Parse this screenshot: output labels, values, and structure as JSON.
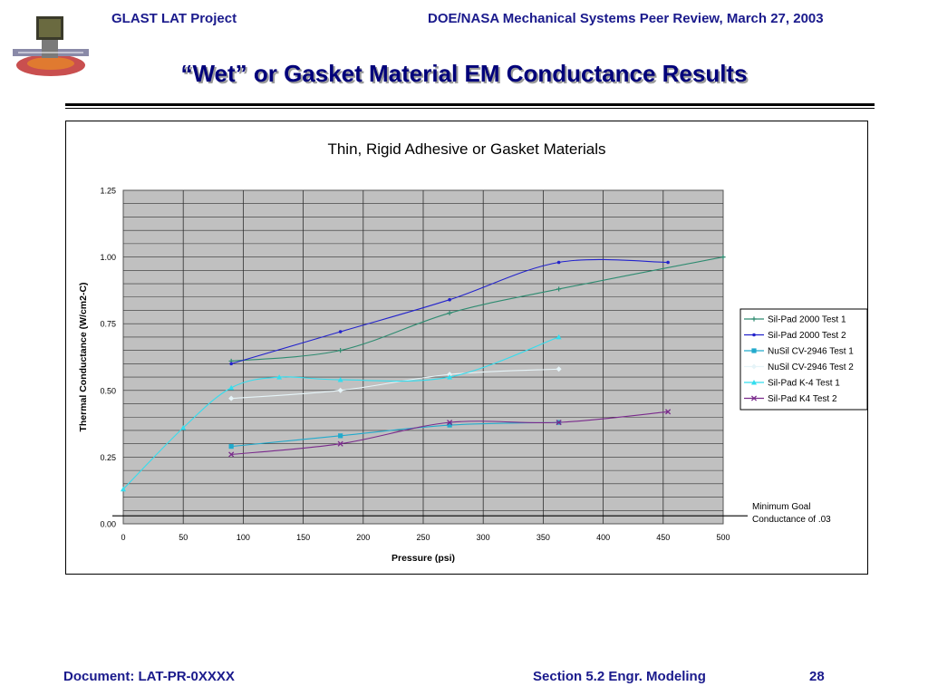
{
  "header": {
    "left": "GLAST LAT Project",
    "right": "DOE/NASA Mechanical Systems Peer Review, March 27, 2003"
  },
  "slide_title": "“Wet” or Gasket Material EM Conductance Results",
  "footer": {
    "document": "Document: LAT-PR-0XXXX",
    "section": "Section 5.2  Engr. Modeling",
    "page": "28"
  },
  "chart_data": {
    "type": "line",
    "title": "Thin, Rigid Adhesive or Gasket Materials",
    "xlabel": "Pressure (psi)",
    "ylabel": "Thermal Conductance (W/cm2-C)",
    "xlim": [
      0,
      500
    ],
    "ylim": [
      0,
      1.25
    ],
    "x_ticks": [
      "0",
      "50",
      "100",
      "150",
      "200",
      "250",
      "300",
      "350",
      "400",
      "450",
      "500"
    ],
    "y_ticks": [
      "0.00",
      "0.25",
      "0.50",
      "0.75",
      "1.00",
      "1.25"
    ],
    "grid": true,
    "plot_background": "#c0c0c0",
    "legend_position": "right",
    "series": [
      {
        "name": "Sil-Pad 2000 Test 1",
        "color": "#2e8b70",
        "marker": "+",
        "x": [
          90,
          181,
          272,
          363,
          500
        ],
        "y": [
          0.61,
          0.65,
          0.79,
          0.88,
          1.0
        ]
      },
      {
        "name": "Sil-Pad 2000 Test 2",
        "color": "#2323cc",
        "marker": "dot",
        "x": [
          90,
          181,
          272,
          363,
          454
        ],
        "y": [
          0.6,
          0.72,
          0.84,
          0.98,
          0.98
        ]
      },
      {
        "name": "NuSil CV-2946 Test 1",
        "color": "#22aacc",
        "marker": "square",
        "x": [
          90,
          181,
          272,
          363
        ],
        "y": [
          0.29,
          0.33,
          0.37,
          0.38
        ]
      },
      {
        "name": "NuSil CV-2946 Test 2",
        "color": "#e6f4f8",
        "marker": "diamond",
        "x": [
          90,
          181,
          272,
          363
        ],
        "y": [
          0.47,
          0.5,
          0.56,
          0.58
        ]
      },
      {
        "name": "Sil-Pad K-4 Test 1",
        "color": "#33ddee",
        "marker": "triangle",
        "x": [
          0,
          50,
          90,
          130,
          181,
          272,
          363
        ],
        "y": [
          0.13,
          0.36,
          0.51,
          0.55,
          0.54,
          0.55,
          0.7
        ]
      },
      {
        "name": "Sil-Pad K4 Test 2",
        "color": "#7a2a8c",
        "marker": "x",
        "x": [
          90,
          181,
          272,
          363,
          454
        ],
        "y": [
          0.26,
          0.3,
          0.38,
          0.38,
          0.42
        ]
      }
    ],
    "reference_line": {
      "y": 0.03,
      "label": [
        "Minimum Goal",
        "Conductance of .03"
      ]
    }
  }
}
